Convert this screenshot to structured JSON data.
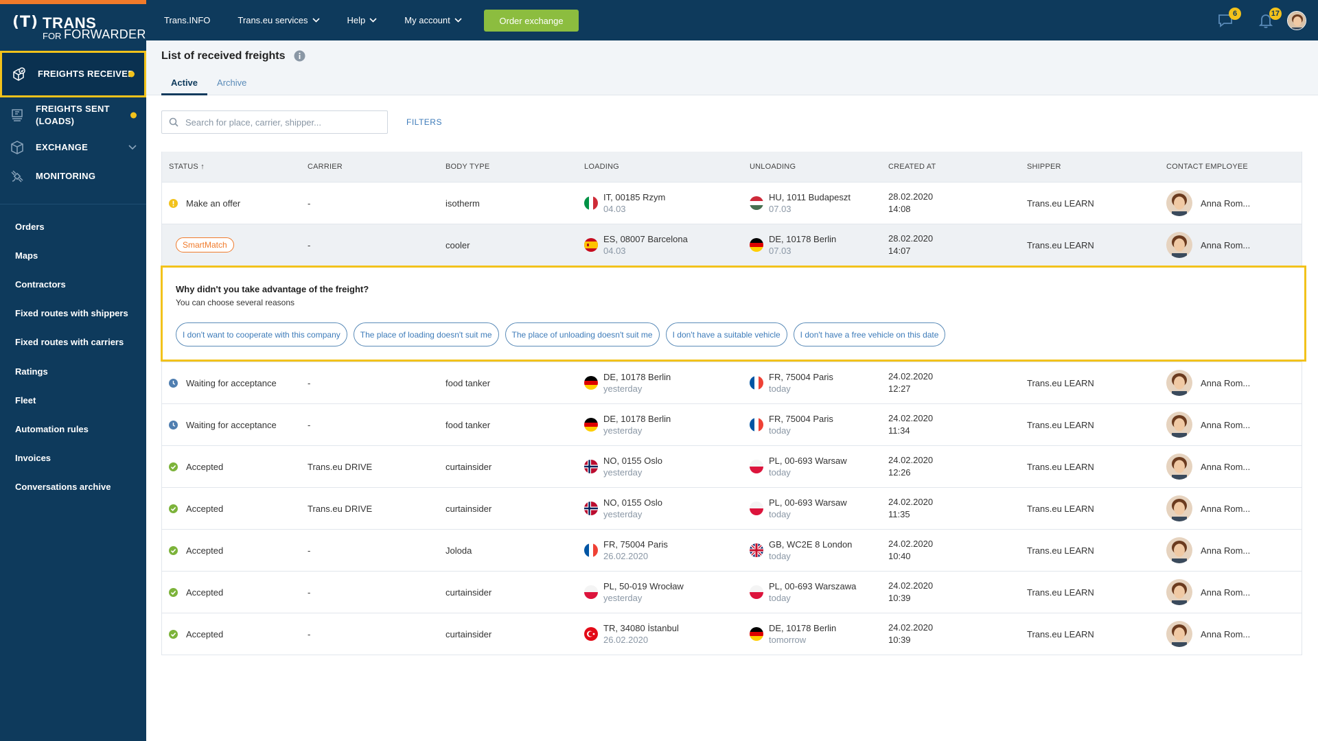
{
  "brand": {
    "paren": "(T)",
    "name": "TRANS",
    "sub1": "FOR",
    "sub2": "FORWARDERS"
  },
  "colors": {
    "nav_bg": "#0e3a5c",
    "accent": "#f07a2a",
    "highlight": "#f2c21b",
    "order_btn": "#8cbd3f",
    "link": "#3d7bb9"
  },
  "sidebar": {
    "main": [
      {
        "label": "Freights received",
        "icon": "freight-received-icon",
        "dot": true
      },
      {
        "label": "Freights sent (loads)",
        "icon": "freight-sent-icon",
        "dot": true
      },
      {
        "label": "Exchange",
        "icon": "cube-icon",
        "chevron": true
      },
      {
        "label": "Monitoring",
        "icon": "satellite-icon"
      }
    ],
    "links": [
      "Orders",
      "Maps",
      "Contractors",
      "Fixed routes with shippers",
      "Fixed routes with carriers",
      "Ratings",
      "Fleet",
      "Automation rules",
      "Invoices",
      "Conversations archive"
    ]
  },
  "topbar": {
    "nav": [
      "Trans.INFO",
      "Trans.eu services",
      "Help",
      "My account"
    ],
    "order_button": "Order exchange",
    "messages_badge": "6",
    "notifications_badge": "17"
  },
  "page": {
    "title": "List of received freights",
    "tabs": [
      "Active",
      "Archive"
    ],
    "search_placeholder": "Search for place, carrier, shipper...",
    "filters": "FILTERS"
  },
  "table": {
    "headers": [
      "STATUS ↑",
      "CARRIER",
      "BODY TYPE",
      "LOADING",
      "UNLOADING",
      "CREATED AT",
      "SHIPPER",
      "CONTACT EMPLOYEE"
    ],
    "rows": [
      {
        "status": "Make an offer",
        "status_icon": "warning-icon",
        "carrier": "-",
        "body": "isotherm",
        "load": "IT, 00185 Rzym",
        "load_date": "04.03",
        "load_flag": "it",
        "unload": "HU, 1011 Budapeszt",
        "unload_date": "07.03",
        "unload_flag": "hu",
        "created_date": "28.02.2020",
        "created_time": "14:08",
        "shipper": "Trans.eu LEARN",
        "contact": "Anna Rom..."
      },
      {
        "status": "SmartMatch",
        "status_icon": "smartmatch",
        "carrier": "-",
        "body": "cooler",
        "load": "ES, 08007 Barcelona",
        "load_date": "04.03",
        "load_flag": "es",
        "unload": "DE, 10178 Berlin",
        "unload_date": "07.03",
        "unload_flag": "de",
        "created_date": "28.02.2020",
        "created_time": "14:07",
        "shipper": "Trans.eu LEARN",
        "contact": "Anna Rom..."
      },
      {
        "status": "Waiting for acceptance",
        "status_icon": "clock-icon",
        "carrier": "-",
        "body": "food tanker",
        "load": "DE, 10178 Berlin",
        "load_date": "yesterday",
        "load_flag": "de",
        "unload": "FR, 75004 Paris",
        "unload_date": "today",
        "unload_flag": "fr",
        "created_date": "24.02.2020",
        "created_time": "12:27",
        "shipper": "Trans.eu LEARN",
        "contact": "Anna Rom..."
      },
      {
        "status": "Waiting for acceptance",
        "status_icon": "clock-icon",
        "carrier": "-",
        "body": "food tanker",
        "load": "DE, 10178 Berlin",
        "load_date": "yesterday",
        "load_flag": "de",
        "unload": "FR, 75004 Paris",
        "unload_date": "today",
        "unload_flag": "fr",
        "created_date": "24.02.2020",
        "created_time": "11:34",
        "shipper": "Trans.eu LEARN",
        "contact": "Anna Rom..."
      },
      {
        "status": "Accepted",
        "status_icon": "check-icon",
        "carrier": "Trans.eu DRIVE",
        "body": "curtainsider",
        "load": "NO, 0155 Oslo",
        "load_date": "yesterday",
        "load_flag": "no",
        "unload": "PL, 00-693 Warsaw",
        "unload_date": "today",
        "unload_flag": "pl",
        "created_date": "24.02.2020",
        "created_time": "12:26",
        "shipper": "Trans.eu LEARN",
        "contact": "Anna Rom..."
      },
      {
        "status": "Accepted",
        "status_icon": "check-icon",
        "carrier": "Trans.eu DRIVE",
        "body": "curtainsider",
        "load": "NO, 0155 Oslo",
        "load_date": "yesterday",
        "load_flag": "no",
        "unload": "PL, 00-693 Warsaw",
        "unload_date": "today",
        "unload_flag": "pl",
        "created_date": "24.02.2020",
        "created_time": "11:35",
        "shipper": "Trans.eu LEARN",
        "contact": "Anna Rom..."
      },
      {
        "status": "Accepted",
        "status_icon": "check-icon",
        "carrier": "-",
        "body": "Joloda",
        "load": "FR, 75004 Paris",
        "load_date": "26.02.2020",
        "load_flag": "fr",
        "unload": "GB, WC2E 8 London",
        "unload_date": "today",
        "unload_flag": "gb",
        "created_date": "24.02.2020",
        "created_time": "10:40",
        "shipper": "Trans.eu LEARN",
        "contact": "Anna Rom..."
      },
      {
        "status": "Accepted",
        "status_icon": "check-icon",
        "carrier": "-",
        "body": "curtainsider",
        "load": "PL, 50-019 Wrocław",
        "load_date": "yesterday",
        "load_flag": "pl",
        "unload": "PL, 00-693 Warszawa",
        "unload_date": "today",
        "unload_flag": "pl",
        "created_date": "24.02.2020",
        "created_time": "10:39",
        "shipper": "Trans.eu LEARN",
        "contact": "Anna Rom..."
      },
      {
        "status": "Accepted",
        "status_icon": "check-icon",
        "carrier": "-",
        "body": "curtainsider",
        "load": "TR, 34080 İstanbul",
        "load_date": "26.02.2020",
        "load_flag": "tr",
        "unload": "DE, 10178 Berlin",
        "unload_date": "tomorrow",
        "unload_flag": "de",
        "created_date": "24.02.2020",
        "created_time": "10:39",
        "shipper": "Trans.eu LEARN",
        "contact": "Anna Rom..."
      }
    ]
  },
  "reasons": {
    "question": "Why didn't you take advantage of the freight?",
    "hint": "You can choose several reasons",
    "options": [
      "I don't want to cooperate with this company",
      "The place of loading doesn't suit me",
      "The place of unloading doesn't suit me",
      "I don't have a suitable vehicle",
      "I don't have a free vehicle on this date"
    ]
  }
}
